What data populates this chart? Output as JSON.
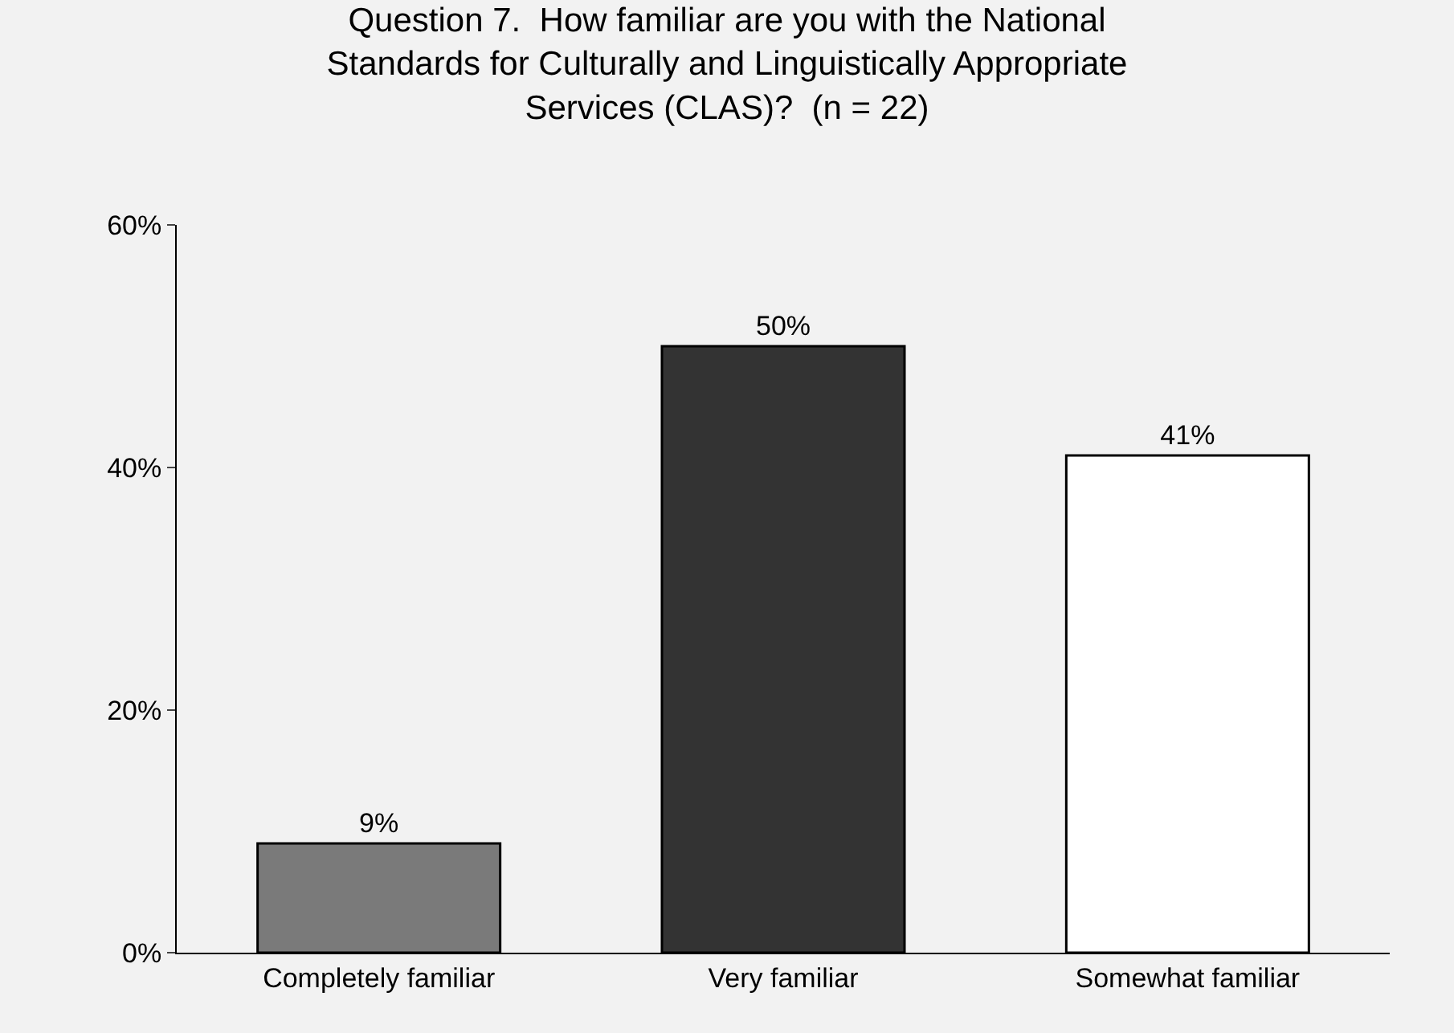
{
  "chart_data": {
    "type": "bar",
    "title": "Question 7.  How familiar are you with the National\nStandards for Culturally and Linguistically Appropriate\nServices (CLAS)?  (n = 22)",
    "categories": [
      "Completely familiar",
      "Very familiar",
      "Somewhat familiar"
    ],
    "values": [
      9,
      50,
      41
    ],
    "colors": [
      "#7a7a7a",
      "#333333",
      "#ffffff"
    ],
    "value_labels": [
      "9%",
      "50%",
      "41%"
    ],
    "ylim": [
      0,
      60
    ],
    "yticks": [
      {
        "value": 0,
        "label": "0%"
      },
      {
        "value": 20,
        "label": "20%"
      },
      {
        "value": 40,
        "label": "40%"
      },
      {
        "value": 60,
        "label": "60%"
      }
    ]
  }
}
